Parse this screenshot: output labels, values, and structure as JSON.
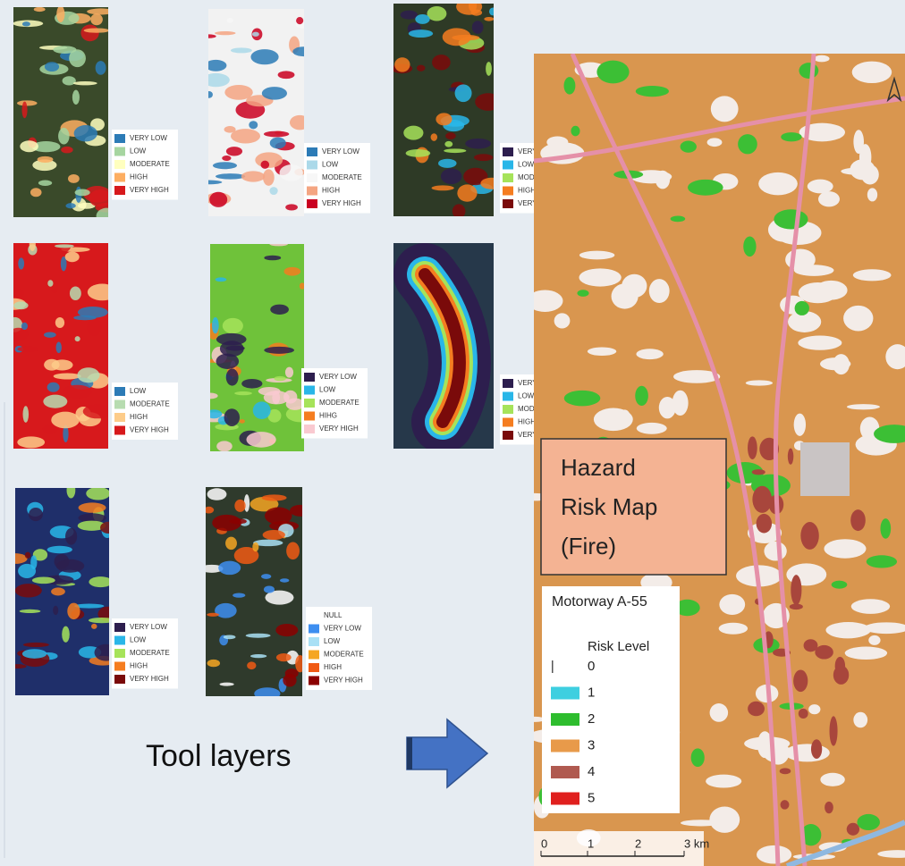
{
  "layers": [
    {
      "legend": [
        {
          "label": "VERY LOW",
          "color": "#2c7bb6"
        },
        {
          "label": "LOW",
          "color": "#a6d5a0"
        },
        {
          "label": "MODERATE",
          "color": "#ffffbf"
        },
        {
          "label": "HIGH",
          "color": "#fdae61"
        },
        {
          "label": "VERY HIGH",
          "color": "#d7191c"
        }
      ]
    },
    {
      "legend": [
        {
          "label": "VERY LOW",
          "color": "#2c7bb6"
        },
        {
          "label": "LOW",
          "color": "#abd9e9"
        },
        {
          "label": "MODERATE",
          "color": "#f7f7f7"
        },
        {
          "label": "HIGH",
          "color": "#f4a582"
        },
        {
          "label": "VERY HIGH",
          "color": "#ca0020"
        }
      ]
    },
    {
      "legend": [
        {
          "label": "VERY LOW",
          "color": "#2d1e4e"
        },
        {
          "label": "LOW",
          "color": "#29b6e8"
        },
        {
          "label": "MODERATE",
          "color": "#a6e35a"
        },
        {
          "label": "HIGH",
          "color": "#f57d20"
        },
        {
          "label": "VERY HIGH",
          "color": "#7a0a0a"
        }
      ]
    },
    {
      "legend": [
        {
          "label": "LOW",
          "color": "#2c7bb6"
        },
        {
          "label": "MODERATE",
          "color": "#b7dcb0"
        },
        {
          "label": "HIGH",
          "color": "#fdcc8a"
        },
        {
          "label": "VERY HIGH",
          "color": "#d7191c"
        }
      ]
    },
    {
      "legend": [
        {
          "label": "VERY LOW",
          "color": "#2d1e4e"
        },
        {
          "label": "LOW",
          "color": "#29b6e8"
        },
        {
          "label": "MODERATE",
          "color": "#a6e35a"
        },
        {
          "label": "HIHG",
          "color": "#f57d20"
        },
        {
          "label": "VERY HIGH",
          "color": "#f9c9d0"
        }
      ]
    },
    {
      "legend": [
        {
          "label": "VERY LOW",
          "color": "#2d1e4e"
        },
        {
          "label": "LOW",
          "color": "#29b6e8"
        },
        {
          "label": "MODERATE",
          "color": "#a6e35a"
        },
        {
          "label": "HIGH",
          "color": "#f57d20"
        },
        {
          "label": "VERY HIGH",
          "color": "#7a0a0a"
        }
      ]
    },
    {
      "legend": [
        {
          "label": "VERY LOW",
          "color": "#2d1e4e"
        },
        {
          "label": "LOW",
          "color": "#29b6e8"
        },
        {
          "label": "MODERATE",
          "color": "#a6e35a"
        },
        {
          "label": "HIGH",
          "color": "#f57d20"
        },
        {
          "label": "VERY HIGH",
          "color": "#7a0a0a"
        }
      ]
    },
    {
      "legend": [
        {
          "label": "NULL",
          "color": "#ffffff"
        },
        {
          "label": "VERY LOW",
          "color": "#3d8ef0"
        },
        {
          "label": "LOW",
          "color": "#a9e0f5"
        },
        {
          "label": "MODERATE",
          "color": "#f5a623"
        },
        {
          "label": "HIGH",
          "color": "#f05a14"
        },
        {
          "label": "VERY HIGH",
          "color": "#8b0000"
        }
      ]
    }
  ],
  "caption": "Tool layers",
  "result": {
    "title_lines": [
      "Hazard",
      "Risk Map",
      "(Fire)"
    ],
    "legend_title": "Motorway A-55",
    "legend_subtitle": "Risk Level",
    "levels": [
      {
        "label": "0",
        "color": "#ffffff"
      },
      {
        "label": "1",
        "color": "#3ecfe0"
      },
      {
        "label": "2",
        "color": "#2ebd2e"
      },
      {
        "label": "3",
        "color": "#e89a4a"
      },
      {
        "label": "4",
        "color": "#b05a50"
      },
      {
        "label": "5",
        "color": "#e0201e"
      }
    ],
    "scale_labels": [
      "0",
      "1",
      "2",
      "3 km"
    ]
  }
}
